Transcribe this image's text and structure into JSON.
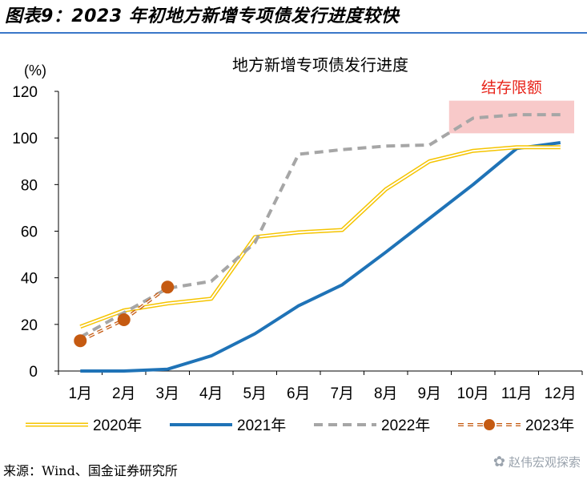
{
  "figure_title": "图表9：2023 年初地方新增专项债发行进度较快",
  "source": "来源：Wind、国金证券研究所",
  "watermark": "赵伟宏观探索",
  "colors": {
    "rule": "#3a78c9",
    "s2020": "#f5c400",
    "s2021": "#1f73b7",
    "s2022": "#a6a6a6",
    "s2023": "#c55a11",
    "annotation_text": "#e8241a",
    "annotation_fill": "#f8c9c9"
  },
  "chart_data": {
    "type": "line",
    "title": "地方新增专项债发行进度",
    "ylabel": "(%)",
    "ylim": [
      0,
      120
    ],
    "yticks": [
      0,
      20,
      40,
      60,
      80,
      100,
      120
    ],
    "grid": false,
    "legend_position": "bottom",
    "categories": [
      "1月",
      "2月",
      "3月",
      "4月",
      "5月",
      "6月",
      "7月",
      "8月",
      "9月",
      "10月",
      "11月",
      "12月"
    ],
    "series": [
      {
        "name": "2020年",
        "style": "double-line",
        "color": "#f5c400",
        "values": [
          19,
          26,
          29,
          31,
          57.5,
          59.5,
          60.5,
          78,
          90,
          94.5,
          96,
          96
        ]
      },
      {
        "name": "2021年",
        "style": "solid",
        "color": "#1f73b7",
        "values": [
          0,
          0,
          0.8,
          6.5,
          16,
          28,
          37,
          51,
          65.5,
          80,
          95.5,
          98
        ]
      },
      {
        "name": "2022年",
        "style": "dashed",
        "color": "#a6a6a6",
        "values": [
          14.5,
          25,
          35.5,
          38.5,
          55,
          93,
          95,
          96.5,
          97,
          108.5,
          110,
          110
        ]
      },
      {
        "name": "2023年",
        "style": "dashed-marker",
        "color": "#c55a11",
        "values": [
          13,
          22,
          36,
          null,
          null,
          null,
          null,
          null,
          null,
          null,
          null,
          null
        ]
      }
    ],
    "annotations": [
      {
        "text": "结存限额",
        "from_category": "10月",
        "to_category": "12月",
        "y_range": [
          102,
          116
        ]
      }
    ]
  }
}
